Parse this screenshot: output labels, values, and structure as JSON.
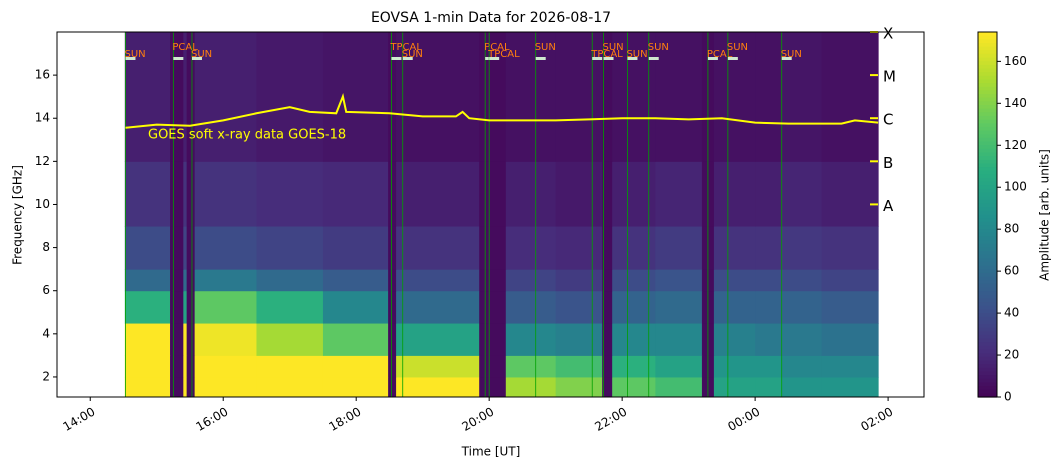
{
  "chart_data": {
    "type": "heatmap",
    "title": "EOVSA 1-min Data for 2026-08-17",
    "xlabel": "Time [UT]",
    "ylabel": "Frequency [GHz]",
    "xlim": [
      13.5,
      26.54
    ],
    "ylim": [
      1.07,
      18
    ],
    "xticks": [
      {
        "value": 14,
        "label": "14:00"
      },
      {
        "value": 16,
        "label": "16:00"
      },
      {
        "value": 18,
        "label": "18:00"
      },
      {
        "value": 20,
        "label": "20:00"
      },
      {
        "value": 22,
        "label": "22:00"
      },
      {
        "value": 24,
        "label": "00:00"
      },
      {
        "value": 26,
        "label": "02:00"
      }
    ],
    "yticks": [
      2,
      4,
      6,
      8,
      10,
      12,
      14,
      16
    ],
    "x_edges": [
      14.52,
      15.2,
      15.4,
      15.45,
      15.57,
      16.5,
      17.5,
      18.48,
      18.6,
      19.85,
      20.25,
      21.0,
      21.7,
      21.85,
      22.5,
      23.2,
      23.38,
      24.0,
      24.4,
      25.0,
      25.85
    ],
    "y_edges": [
      1.07,
      2,
      3,
      4.5,
      6,
      7,
      9,
      12,
      18
    ],
    "z": [
      [
        174,
        5,
        174,
        5,
        174,
        174,
        174,
        5,
        174,
        5,
        150,
        140,
        5,
        130,
        120,
        5,
        100,
        100,
        90,
        90
      ],
      [
        174,
        5,
        174,
        5,
        174,
        174,
        174,
        5,
        160,
        5,
        130,
        120,
        5,
        110,
        100,
        5,
        90,
        90,
        80,
        80
      ],
      [
        174,
        5,
        174,
        5,
        170,
        150,
        130,
        5,
        100,
        5,
        80,
        75,
        5,
        80,
        80,
        5,
        75,
        70,
        70,
        65
      ],
      [
        110,
        5,
        100,
        5,
        130,
        110,
        80,
        5,
        60,
        5,
        50,
        45,
        5,
        55,
        60,
        5,
        55,
        55,
        55,
        50
      ],
      [
        60,
        5,
        60,
        5,
        70,
        60,
        50,
        5,
        40,
        5,
        35,
        30,
        5,
        40,
        45,
        5,
        40,
        40,
        40,
        35
      ],
      [
        40,
        5,
        35,
        5,
        40,
        35,
        30,
        5,
        25,
        5,
        22,
        20,
        5,
        25,
        30,
        5,
        25,
        25,
        28,
        25
      ],
      [
        25,
        5,
        25,
        5,
        25,
        22,
        20,
        5,
        15,
        5,
        15,
        12,
        5,
        15,
        18,
        5,
        15,
        15,
        18,
        15
      ],
      [
        15,
        5,
        15,
        5,
        15,
        12,
        10,
        5,
        8,
        5,
        8,
        8,
        5,
        8,
        8,
        5,
        8,
        8,
        10,
        8
      ]
    ],
    "colormap": "viridis",
    "clim": [
      0,
      174
    ],
    "colorbar": {
      "label": "Amplitude [arb. units]",
      "ticks": [
        0,
        20,
        40,
        60,
        80,
        100,
        120,
        140,
        160
      ]
    },
    "goes": {
      "label": "GOES soft x-ray data GOES-18",
      "color": "#ffff00",
      "y2scale": "log",
      "y2lim": [
        3.4e-13,
        0.0001
      ],
      "y2ticks": [
        {
          "value": 0.0001,
          "label": "X"
        },
        {
          "value": 1e-05,
          "label": "M"
        },
        {
          "value": 1e-06,
          "label": "C"
        },
        {
          "value": 1e-07,
          "label": "B"
        },
        {
          "value": 1e-08,
          "label": "A"
        }
      ],
      "x": [
        14.53,
        15.0,
        15.5,
        16.0,
        16.5,
        17.0,
        17.3,
        17.7,
        17.8,
        17.85,
        18.5,
        19.0,
        19.5,
        19.6,
        19.7,
        20.0,
        21.0,
        21.5,
        22.0,
        22.5,
        23.0,
        23.5,
        24.0,
        24.5,
        25.0,
        25.3,
        25.5,
        25.85
      ],
      "values": [
        6e-07,
        7.1e-07,
        6.7e-07,
        8.9e-07,
        1.3e-06,
        1.8e-06,
        1.4e-06,
        1.3e-06,
        3.2e-06,
        1.4e-06,
        1.3e-06,
        1.1e-06,
        1.1e-06,
        1.4e-06,
        1e-06,
        8.9e-07,
        8.9e-07,
        9.4e-07,
        1e-06,
        1e-06,
        9.4e-07,
        1e-06,
        7.9e-07,
        7.5e-07,
        7.5e-07,
        7.5e-07,
        8.9e-07,
        7.9e-07
      ]
    },
    "scan_color": "#ff7f0e",
    "scan_line_color": "#00a000",
    "scans": [
      {
        "label": "SUN",
        "time": 14.53
      },
      {
        "label": "PCAL",
        "time": 15.25
      },
      {
        "label": "SUN",
        "time": 15.53
      },
      {
        "label": "TPCAL",
        "time": 18.53
      },
      {
        "label": "SUN",
        "time": 18.7
      },
      {
        "label": "PCAL",
        "time": 19.94
      },
      {
        "label": "TPCAL",
        "time": 20.0
      },
      {
        "label": "SUN",
        "time": 20.7
      },
      {
        "label": "TPCAL",
        "time": 21.55
      },
      {
        "label": "SUN",
        "time": 21.72
      },
      {
        "label": "SUN",
        "time": 22.08
      },
      {
        "label": "SUN",
        "time": 22.4
      },
      {
        "label": "PCAL",
        "time": 23.29
      },
      {
        "label": "SUN",
        "time": 23.59
      },
      {
        "label": "SUN",
        "time": 24.4
      }
    ]
  }
}
